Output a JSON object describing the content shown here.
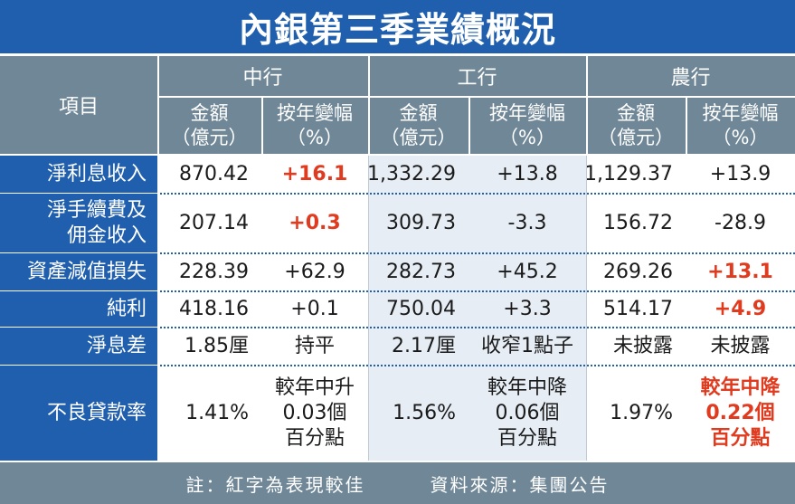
{
  "title": "內銀第三季業績概況",
  "header": {
    "item": "項目",
    "banks": [
      "中行",
      "工行",
      "農行"
    ],
    "amount_label": [
      "金額",
      "（億元）"
    ],
    "change_label": [
      "按年變幅",
      "（%）"
    ]
  },
  "rows": [
    {
      "label": [
        "淨利息收入"
      ],
      "cells": [
        {
          "text": [
            "870.42"
          ],
          "red": false
        },
        {
          "text": [
            "+16.1"
          ],
          "red": true
        },
        {
          "text": [
            "1,332.29"
          ],
          "red": false
        },
        {
          "text": [
            "+13.8"
          ],
          "red": false
        },
        {
          "text": [
            "1,129.37"
          ],
          "red": false
        },
        {
          "text": [
            "+13.9"
          ],
          "red": false
        }
      ]
    },
    {
      "label": [
        "淨手續費及",
        "佣金收入"
      ],
      "cells": [
        {
          "text": [
            "207.14"
          ],
          "red": false
        },
        {
          "text": [
            "+0.3"
          ],
          "red": true
        },
        {
          "text": [
            "309.73"
          ],
          "red": false
        },
        {
          "text": [
            "-3.3"
          ],
          "red": false
        },
        {
          "text": [
            "156.72"
          ],
          "red": false
        },
        {
          "text": [
            "-28.9"
          ],
          "red": false
        }
      ]
    },
    {
      "label": [
        "資產減值損失"
      ],
      "cells": [
        {
          "text": [
            "228.39"
          ],
          "red": false
        },
        {
          "text": [
            "+62.9"
          ],
          "red": false
        },
        {
          "text": [
            "282.73"
          ],
          "red": false
        },
        {
          "text": [
            "+45.2"
          ],
          "red": false
        },
        {
          "text": [
            "269.26"
          ],
          "red": false
        },
        {
          "text": [
            "+13.1"
          ],
          "red": true
        }
      ]
    },
    {
      "label": [
        "純利"
      ],
      "cells": [
        {
          "text": [
            "418.16"
          ],
          "red": false
        },
        {
          "text": [
            "+0.1"
          ],
          "red": false
        },
        {
          "text": [
            "750.04"
          ],
          "red": false
        },
        {
          "text": [
            "+3.3"
          ],
          "red": false
        },
        {
          "text": [
            "514.17"
          ],
          "red": false
        },
        {
          "text": [
            "+4.9"
          ],
          "red": true
        }
      ]
    },
    {
      "label": [
        "淨息差"
      ],
      "cells": [
        {
          "text": [
            "1.85厘"
          ],
          "red": false
        },
        {
          "text": [
            "持平"
          ],
          "red": false
        },
        {
          "text": [
            "2.17厘"
          ],
          "red": false
        },
        {
          "text": [
            "收窄1點子"
          ],
          "red": false
        },
        {
          "text": [
            "未披露"
          ],
          "red": false
        },
        {
          "text": [
            "未披露"
          ],
          "red": false
        }
      ]
    },
    {
      "label": [
        "不良貸款率"
      ],
      "cells": [
        {
          "text": [
            "1.41%"
          ],
          "red": false
        },
        {
          "text": [
            "較年中升",
            "0.03個",
            "百分點"
          ],
          "red": false
        },
        {
          "text": [
            "1.56%"
          ],
          "red": false
        },
        {
          "text": [
            "較年中降",
            "0.06個",
            "百分點"
          ],
          "red": false
        },
        {
          "text": [
            "1.97%"
          ],
          "red": false
        },
        {
          "text": [
            "較年中降",
            "0.22個",
            "百分點"
          ],
          "red": true
        }
      ]
    }
  ],
  "footer": {
    "note": "註：紅字為表現較佳",
    "source": "資料來源：集團公告"
  },
  "colors": {
    "title_blue": "#1f5fae",
    "header_grey": "#6f8797",
    "icbc_column_tint": "#e6edf5",
    "highlight_red": "#e03a1f"
  }
}
